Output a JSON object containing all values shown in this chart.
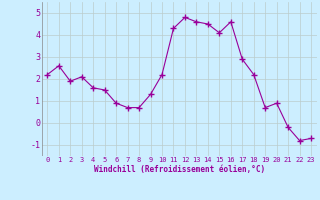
{
  "x": [
    0,
    1,
    2,
    3,
    4,
    5,
    6,
    7,
    8,
    9,
    10,
    11,
    12,
    13,
    14,
    15,
    16,
    17,
    18,
    19,
    20,
    21,
    22,
    23
  ],
  "y": [
    2.2,
    2.6,
    1.9,
    2.1,
    1.6,
    1.5,
    0.9,
    0.7,
    0.7,
    1.3,
    2.2,
    4.3,
    4.8,
    4.6,
    4.5,
    4.1,
    4.6,
    2.9,
    2.2,
    0.7,
    0.9,
    -0.2,
    -0.8,
    -0.7
  ],
  "line_color": "#990099",
  "marker": "+",
  "marker_size": 4,
  "bg_color": "#cceeff",
  "grid_color": "#bbcccc",
  "xlabel": "Windchill (Refroidissement éolien,°C)",
  "xlabel_color": "#990099",
  "tick_color": "#990099",
  "ylim": [
    -1.5,
    5.5
  ],
  "xlim": [
    -0.5,
    23.5
  ],
  "yticks": [
    -1,
    0,
    1,
    2,
    3,
    4,
    5
  ],
  "xticks": [
    0,
    1,
    2,
    3,
    4,
    5,
    6,
    7,
    8,
    9,
    10,
    11,
    12,
    13,
    14,
    15,
    16,
    17,
    18,
    19,
    20,
    21,
    22,
    23
  ]
}
